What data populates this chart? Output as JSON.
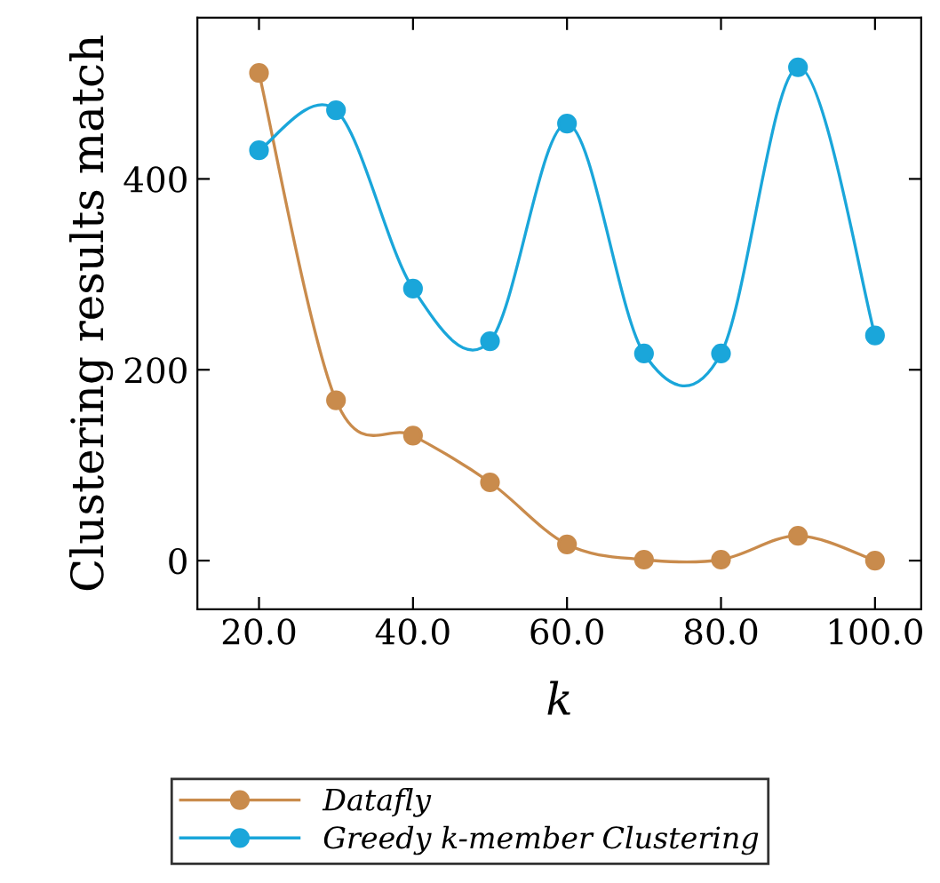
{
  "chart_data": {
    "type": "line",
    "xlabel": "k",
    "ylabel": "Clustering results match",
    "x": [
      20,
      30,
      40,
      50,
      60,
      70,
      80,
      90,
      100
    ],
    "series": [
      {
        "name": "Datafly",
        "color": "#c98b4c",
        "values": [
          511,
          168,
          131,
          82,
          17,
          1,
          1,
          26,
          0
        ]
      },
      {
        "name": "Greedy k-member Clustering",
        "color": "#1aa6da",
        "values": [
          430,
          472,
          285,
          230,
          458,
          217,
          217,
          517,
          236
        ]
      }
    ],
    "xlim": [
      12,
      106
    ],
    "ylim": [
      -51,
      569
    ],
    "xticks": [
      {
        "value": 20,
        "label": "20.0"
      },
      {
        "value": 40,
        "label": "40.0"
      },
      {
        "value": 60,
        "label": "60.0"
      },
      {
        "value": 80,
        "label": "80.0"
      },
      {
        "value": 100,
        "label": "100.0"
      }
    ],
    "yticks": [
      0,
      200,
      400
    ],
    "marker": "circle",
    "line_style": "solid",
    "legend": "bottom",
    "grid": false
  }
}
